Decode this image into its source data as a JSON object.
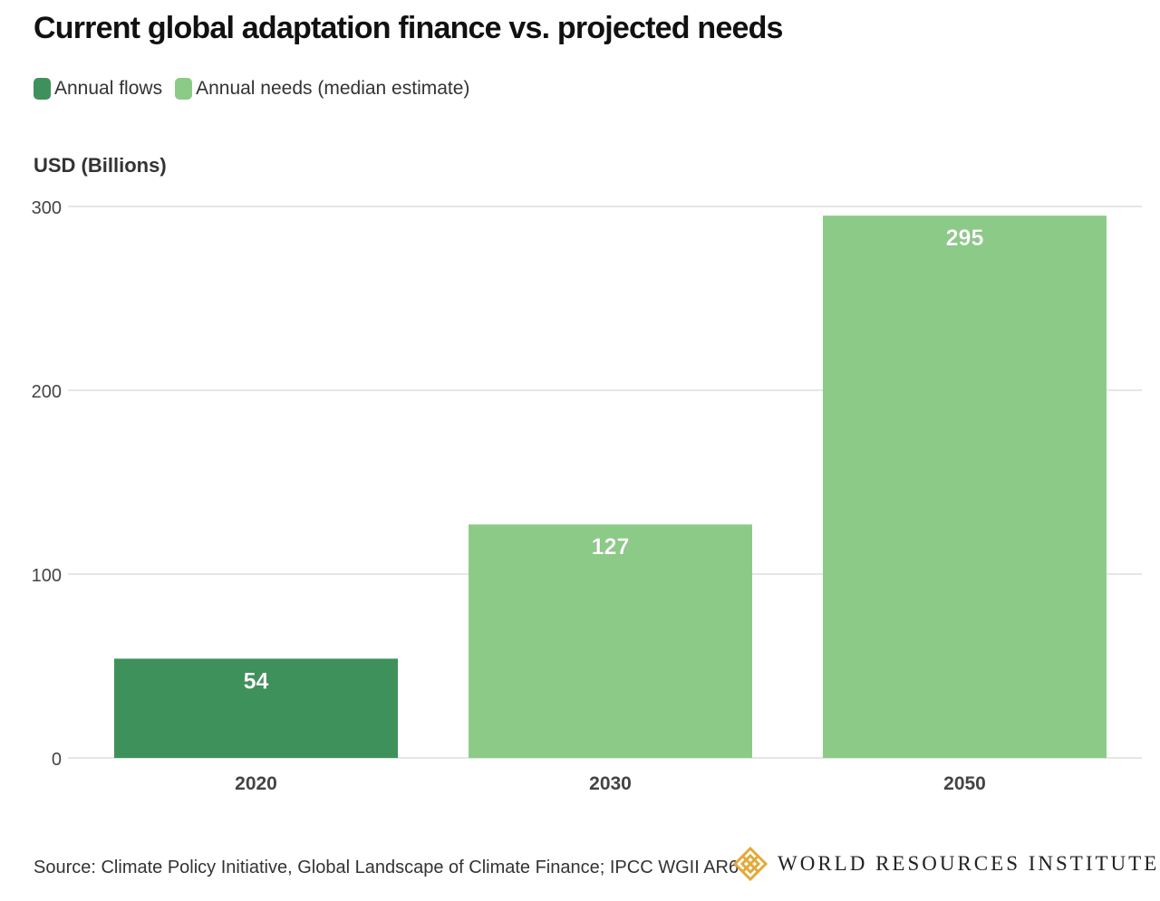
{
  "header": {
    "title": "Current global adaptation finance vs. projected needs"
  },
  "legend": {
    "items": [
      {
        "label": "Annual flows",
        "color": "#3f915b"
      },
      {
        "label": "Annual needs (median estimate)",
        "color": "#8ccb87"
      }
    ]
  },
  "chart_data": {
    "type": "bar",
    "title": "Current global adaptation finance vs. projected needs",
    "ylabel": "USD (Billions)",
    "xlabel": "",
    "ylim": [
      0,
      300
    ],
    "yticks": [
      0,
      100,
      200,
      300
    ],
    "grid": true,
    "legend_position": "top-left",
    "categories": [
      "2020",
      "2030",
      "2050"
    ],
    "values": [
      54,
      127,
      295
    ],
    "bar_series": [
      "Annual flows",
      "Annual needs (median estimate)",
      "Annual needs (median estimate)"
    ],
    "bar_colors": [
      "#3f915b",
      "#8ccb87",
      "#8ccb87"
    ],
    "data_labels": [
      "54",
      "127",
      "295"
    ]
  },
  "footer": {
    "source": "Source: Climate Policy Initiative, Global Landscape of Climate Finance; IPCC WGII AR6",
    "brand": "WORLD RESOURCES INSTITUTE",
    "brand_icon": "wri-logo-icon",
    "brand_color": "#e3a93a"
  }
}
